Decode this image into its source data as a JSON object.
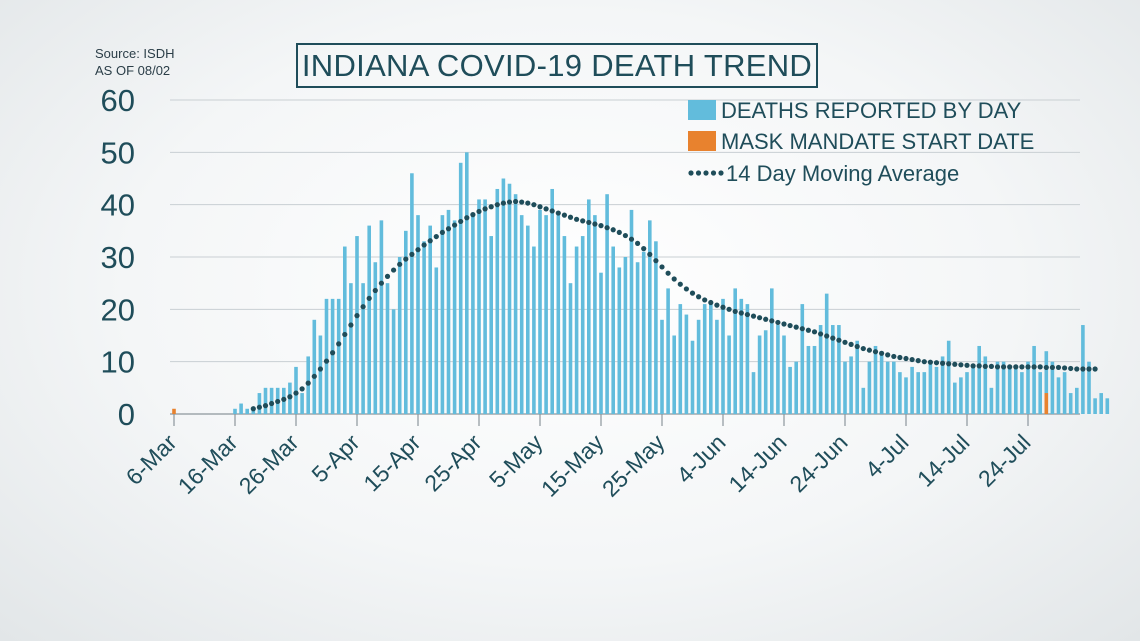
{
  "source": {
    "line1": "Source: ISDH",
    "line2": "AS OF 08/02"
  },
  "title": "INDIANA COVID-19 DEATH TREND",
  "colors": {
    "bar": "#62bcdc",
    "mask": "#e8822e",
    "avg": "#1f4d5a",
    "text": "#1f4d5a",
    "grid": "#c9cfd3"
  },
  "chart_data": {
    "type": "bar",
    "ylim": [
      0,
      60
    ],
    "yticks": [
      0,
      10,
      20,
      30,
      40,
      50,
      60
    ],
    "start_date": "6-Mar",
    "xtick_labels": [
      "6-Mar",
      "16-Mar",
      "26-Mar",
      "5-Apr",
      "15-Apr",
      "25-Apr",
      "5-May",
      "15-May",
      "25-May",
      "4-Jun",
      "14-Jun",
      "24-Jun",
      "4-Jul",
      "14-Jul",
      "24-Jul"
    ],
    "legend": [
      {
        "label": "DEATHS REPORTED BY DAY",
        "kind": "bar"
      },
      {
        "label": "MASK MANDATE START DATE",
        "kind": "mask"
      },
      {
        "label": "14 Day Moving Average",
        "kind": "dots"
      }
    ],
    "series": [
      {
        "name": "DEATHS REPORTED BY DAY",
        "values": [
          1,
          0,
          0,
          0,
          0,
          0,
          0,
          0,
          0,
          0,
          1,
          2,
          1,
          1,
          4,
          5,
          5,
          5,
          5,
          6,
          9,
          4,
          11,
          18,
          15,
          22,
          22,
          22,
          32,
          25,
          34,
          25,
          36,
          29,
          37,
          25,
          20,
          30,
          35,
          46,
          38,
          33,
          36,
          28,
          38,
          39,
          37,
          48,
          50,
          38,
          41,
          41,
          34,
          43,
          45,
          44,
          42,
          38,
          36,
          32,
          39,
          38,
          43,
          38,
          34,
          25,
          32,
          34,
          41,
          38,
          27,
          42,
          32,
          28,
          30,
          39,
          29,
          31,
          37,
          33,
          18,
          24,
          15,
          21,
          19,
          14,
          18,
          21,
          21,
          18,
          22,
          15,
          24,
          22,
          21,
          8,
          15,
          16,
          24,
          17,
          15,
          9,
          10,
          21,
          13,
          13,
          17,
          23,
          17,
          17,
          10,
          11,
          14,
          5,
          10,
          13,
          12,
          10,
          10,
          8,
          7,
          9,
          8,
          8,
          10,
          9,
          11,
          14,
          6,
          7,
          8,
          9,
          13,
          11,
          5,
          10,
          10,
          9,
          9,
          8,
          10,
          13,
          8,
          12,
          10,
          7,
          8,
          4,
          5,
          17,
          10,
          3,
          4,
          3
        ]
      },
      {
        "name": "MASK MANDATE START DATE",
        "values": [
          {
            "date": "27-Jul",
            "value": 4
          }
        ]
      },
      {
        "name": "14 Day Moving Average",
        "values": [
          null,
          null,
          null,
          null,
          null,
          null,
          null,
          null,
          null,
          null,
          null,
          null,
          null,
          1.0,
          1.3,
          1.6,
          2.0,
          2.4,
          2.8,
          3.3,
          4.0,
          4.8,
          5.9,
          7.2,
          8.6,
          10.1,
          11.7,
          13.4,
          15.2,
          17.0,
          18.8,
          20.5,
          22.1,
          23.6,
          25.0,
          26.3,
          27.5,
          28.6,
          29.6,
          30.5,
          31.4,
          32.3,
          33.1,
          33.9,
          34.7,
          35.4,
          36.1,
          36.8,
          37.5,
          38.1,
          38.7,
          39.2,
          39.6,
          40.0,
          40.3,
          40.5,
          40.6,
          40.5,
          40.3,
          40.0,
          39.6,
          39.2,
          38.8,
          38.4,
          38.0,
          37.6,
          37.2,
          36.9,
          36.6,
          36.3,
          36.0,
          35.6,
          35.2,
          34.7,
          34.1,
          33.4,
          32.6,
          31.6,
          30.5,
          29.3,
          28.1,
          26.9,
          25.8,
          24.8,
          23.9,
          23.1,
          22.4,
          21.8,
          21.3,
          20.8,
          20.4,
          20.0,
          19.6,
          19.3,
          19.0,
          18.7,
          18.4,
          18.1,
          17.8,
          17.5,
          17.2,
          16.9,
          16.6,
          16.3,
          16.0,
          15.7,
          15.3,
          14.9,
          14.5,
          14.1,
          13.7,
          13.3,
          12.9,
          12.5,
          12.2,
          11.9,
          11.6,
          11.3,
          11.0,
          10.8,
          10.6,
          10.4,
          10.2,
          10.0,
          9.9,
          9.8,
          9.7,
          9.6,
          9.5,
          9.4,
          9.3,
          9.2,
          9.2,
          9.1,
          9.1,
          9.0,
          9.0,
          9.0,
          9.0,
          9.0,
          9.0,
          9.0,
          9.0,
          8.9,
          8.9,
          8.9,
          8.8,
          8.7,
          8.6,
          8.6,
          8.6,
          8.6
        ]
      }
    ]
  }
}
